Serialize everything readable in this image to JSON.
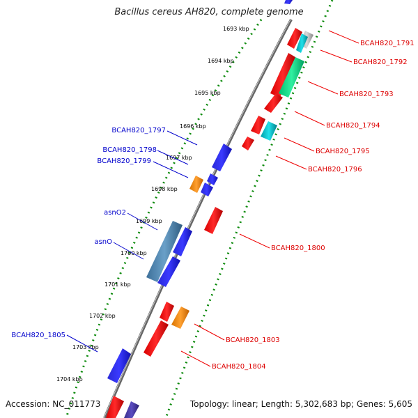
{
  "title": "Bacillus cereus AH820, complete genome",
  "footer": {
    "accession": "Accession: NC_011773",
    "summary": "Topology: linear; Length: 5,302,683 bp; Genes: 5,605"
  },
  "colors": {
    "forward_gene": "#0000ee",
    "reverse_gene": "#ee0000",
    "backbone": "#777777",
    "tick": "#007700"
  },
  "kbp_ticks": [
    "1693 kbp",
    "1694 kbp",
    "1695 kbp",
    "1696 kbp",
    "1697 kbp",
    "1698 kbp",
    "1699 kbp",
    "1700 kbp",
    "1701 kbp",
    "1702 kbp",
    "1703 kbp",
    "1704 kbp"
  ],
  "left_labels": [
    "BCAH820_1797",
    "BCAH820_1798",
    "BCAH820_1799",
    "asnO2",
    "asnO",
    "BCAH820_1805"
  ],
  "right_labels": [
    "BCAH820_1791",
    "BCAH820_1792",
    "BCAH820_1793",
    "BCAH820_1794",
    "BCAH820_1795",
    "BCAH820_1796",
    "BCAH820_1800",
    "BCAH820_1803",
    "BCAH820_1804"
  ]
}
